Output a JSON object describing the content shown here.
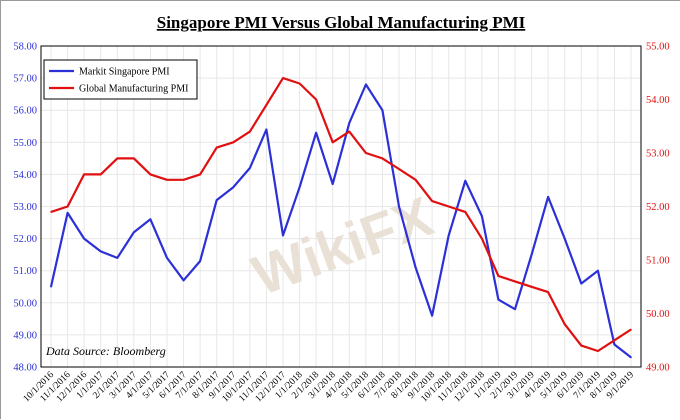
{
  "chart_data": {
    "type": "line",
    "title": "Singapore PMI Versus Global Manufacturing PMI",
    "source_note": "Data Source: Bloomberg",
    "watermark": "WikiFX",
    "categories": [
      "10/1/2016",
      "11/1/2016",
      "12/1/2016",
      "1/1/2017",
      "2/1/2017",
      "3/1/2017",
      "4/1/2017",
      "5/1/2017",
      "6/1/2017",
      "7/1/2017",
      "8/1/2017",
      "9/1/2017",
      "10/1/2017",
      "11/1/2017",
      "12/1/2017",
      "1/1/2018",
      "2/1/2018",
      "3/1/2018",
      "4/1/2018",
      "5/1/2018",
      "6/1/2018",
      "7/1/2018",
      "8/1/2018",
      "9/1/2018",
      "10/1/2018",
      "11/1/2018",
      "12/1/2018",
      "1/1/2019",
      "2/1/2019",
      "3/1/2019",
      "4/1/2019",
      "5/1/2019",
      "6/1/2019",
      "7/1/2019",
      "8/1/2019",
      "9/1/2019"
    ],
    "y_left": {
      "ticks": [
        "48.00",
        "49.00",
        "50.00",
        "51.00",
        "52.00",
        "53.00",
        "54.00",
        "55.00",
        "56.00",
        "57.00",
        "58.00"
      ],
      "ylim": [
        48,
        58
      ]
    },
    "y_right": {
      "ticks": [
        "49.00",
        "50.00",
        "51.00",
        "52.00",
        "53.00",
        "54.00",
        "55.00"
      ],
      "ylim": [
        49,
        55
      ]
    },
    "series": [
      {
        "name": "Markit Singapore PMI",
        "axis": "left",
        "color": "#2b30d8",
        "values": [
          50.5,
          52.8,
          52.0,
          51.6,
          51.4,
          52.2,
          52.6,
          51.4,
          50.7,
          51.3,
          53.2,
          53.6,
          54.2,
          55.4,
          52.1,
          53.6,
          55.3,
          53.7,
          55.6,
          56.8,
          56.0,
          53.0,
          51.1,
          49.6,
          52.1,
          53.8,
          52.7,
          50.1,
          49.8,
          51.5,
          53.3,
          52.0,
          50.6,
          51.0,
          48.7,
          48.3
        ]
      },
      {
        "name": "Global Manufacturing PMI",
        "axis": "right",
        "color": "#e01010",
        "values": [
          51.9,
          52.0,
          52.6,
          52.6,
          52.9,
          52.9,
          52.6,
          52.5,
          52.5,
          52.6,
          53.1,
          53.2,
          53.4,
          53.9,
          54.4,
          54.3,
          54.0,
          53.2,
          53.4,
          53.0,
          52.9,
          52.7,
          52.5,
          52.1,
          52.0,
          51.9,
          51.4,
          50.7,
          50.6,
          50.5,
          50.4,
          49.8,
          49.4,
          49.3,
          49.5,
          49.7
        ]
      }
    ]
  }
}
